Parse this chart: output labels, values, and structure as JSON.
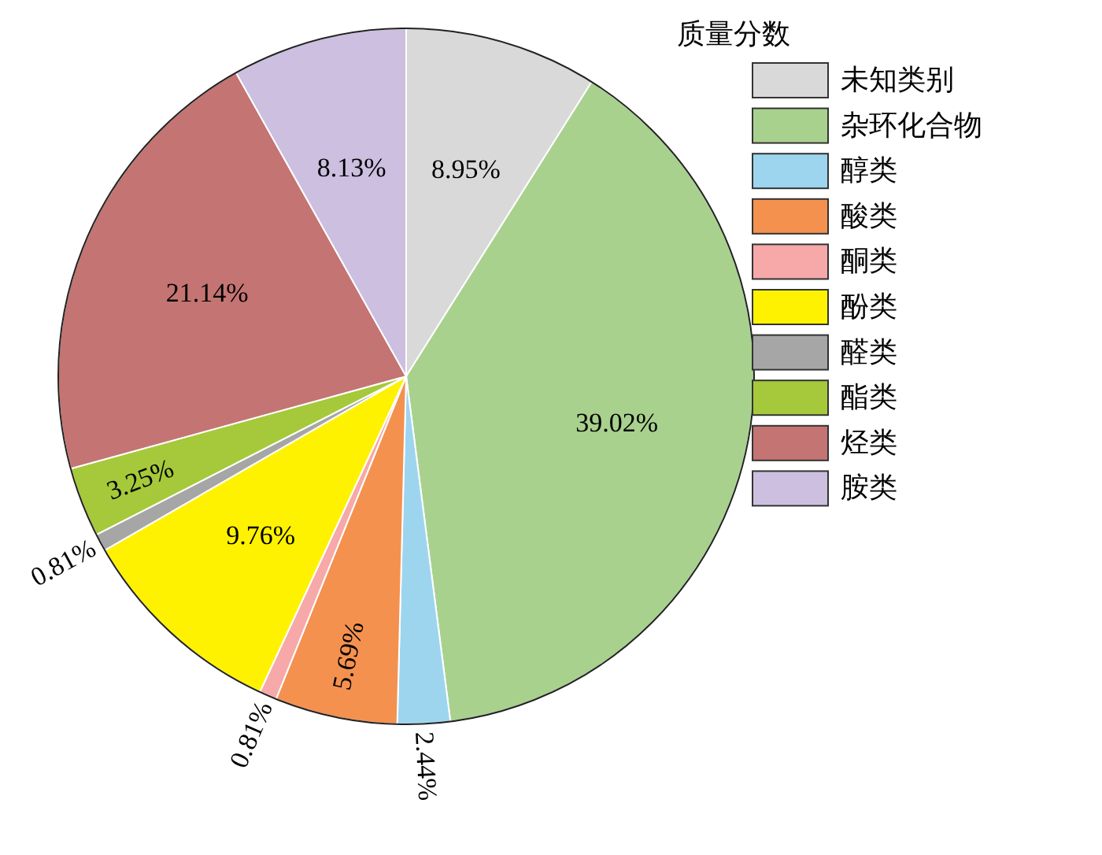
{
  "chart_data": {
    "type": "pie",
    "legend_title": "质量分数",
    "legend": "right",
    "categories": [
      "未知类别",
      "杂环化合物",
      "醇类",
      "酸类",
      "酮类",
      "酚类",
      "醛类",
      "酯类",
      "烃类",
      "胺类"
    ],
    "values": [
      8.95,
      39.02,
      2.44,
      5.69,
      0.81,
      9.76,
      0.81,
      3.25,
      21.14,
      8.13
    ],
    "colors": [
      "#d9d9d9",
      "#a9d18e",
      "#9dd5ef",
      "#f4914f",
      "#f7a8a8",
      "#fff200",
      "#a6a6a6",
      "#a5c93a",
      "#c47472",
      "#cdbfe0"
    ],
    "value_labels": [
      "8.95%",
      "39.02%",
      "2.44%",
      "5.69%",
      "0.81%",
      "9.76%",
      "0.81%",
      "3.25%",
      "21.14%",
      "8.13%"
    ]
  }
}
